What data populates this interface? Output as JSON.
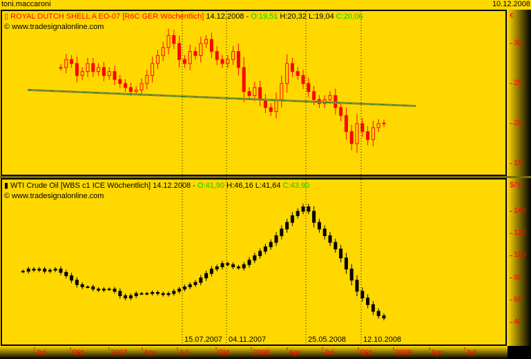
{
  "header": {
    "user": "toni.maccaroni",
    "date": "10.12.2008"
  },
  "colors": {
    "background": "#FFD800",
    "shell_bars": "#ff0000",
    "oil_bars": "#000000",
    "trendline": "#8a8a30",
    "trend_dash": "#00a000"
  },
  "chart_data": [
    {
      "type": "candlestick",
      "title": "ROYAL DUTCH SHELL A EO-07 [R6C GER  Wöchentlich]",
      "last_date": "14.12.2008",
      "ohlc": {
        "open": "O:19,51",
        "high": "H:20,32",
        "low": "L:19,04",
        "close": "C:20,06"
      },
      "source": "www.tradesignalonline.com",
      "unit": "€",
      "yticks": [
        30,
        25,
        20,
        15
      ],
      "ylim": [
        13,
        33
      ],
      "close": [
        27,
        28,
        27.5,
        26,
        26.5,
        27.5,
        26.5,
        27,
        26,
        26.5,
        25.5,
        25,
        24.5,
        24,
        24.2,
        25,
        26,
        27.5,
        28.5,
        29.5,
        31,
        30,
        28,
        27.5,
        29,
        28.5,
        30,
        30.5,
        29,
        28,
        27.5,
        28,
        29,
        27,
        24,
        23.5,
        24.5,
        23,
        22,
        21.5,
        23,
        25,
        27.5,
        26.5,
        26,
        25,
        24,
        23,
        22.5,
        23,
        23.5,
        22,
        21,
        19,
        17.5,
        20,
        19,
        18,
        19.5,
        20,
        20.06
      ],
      "trendline": {
        "from": 24.2,
        "to": 22.2
      }
    },
    {
      "type": "candlestick",
      "title": "WTI Crude Oil [WBS c1 ICE  Wöchentlich]",
      "last_date": "14.12.2008",
      "ohlc": {
        "open": "O:41,90",
        "high": "H:46,16",
        "low": "L:41,64",
        "close": "C:43,90"
      },
      "source": "www.tradesignalonline.com",
      "unit": "$/S",
      "yticks": [
        140,
        120,
        100,
        80,
        60,
        40
      ],
      "ylim": [
        30,
        155
      ],
      "close": [
        86,
        88,
        87,
        88,
        86,
        87,
        88,
        85,
        82,
        78,
        74,
        72,
        72,
        70,
        69,
        70,
        70,
        68,
        64,
        62,
        64,
        66,
        66,
        66,
        67,
        66,
        65,
        66,
        68,
        70,
        72,
        74,
        76,
        80,
        84,
        88,
        90,
        93,
        92,
        90,
        89,
        92,
        96,
        100,
        104,
        108,
        112,
        118,
        124,
        130,
        136,
        140,
        144,
        140,
        130,
        124,
        118,
        112,
        106,
        98,
        88,
        78,
        68,
        62,
        56,
        50,
        46,
        43.9
      ]
    }
  ],
  "xaxis": {
    "labels": [
      "Jul",
      "Okt",
      "2007",
      "Apr",
      "Jul",
      "Okt",
      "2008",
      "Apr",
      "Jul",
      "Okt",
      "2009",
      "Apr",
      "Jul"
    ]
  },
  "markers": [
    "15.07.2007",
    "04.11.2007",
    "25.05.2008",
    "12.10.2008"
  ]
}
